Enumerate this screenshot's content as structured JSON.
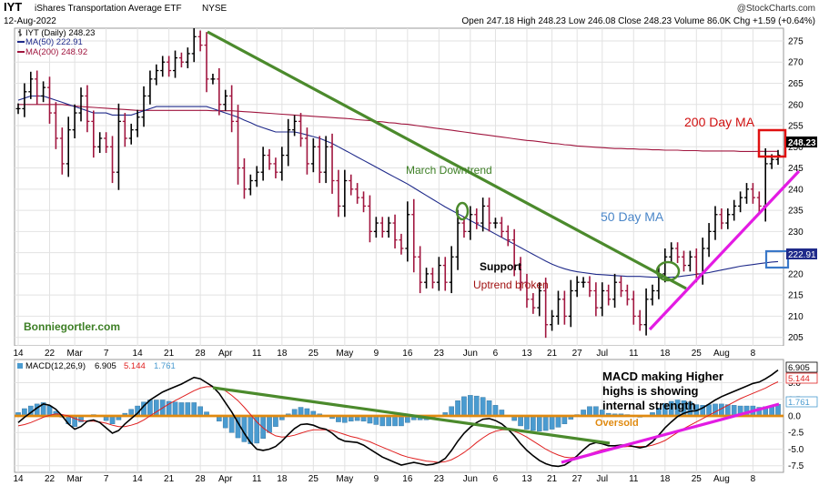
{
  "header": {
    "symbol": "IYT",
    "name": "iShares Transportation Average ETF",
    "exchange": "NYSE",
    "date": "12-Aug-2022",
    "quote": "Open 247.18  High 248.23  Low 246.08  Close 248.23  Volume 86.0K  Chg +1.59 (+0.64%)",
    "watermark": "@StockCharts.com"
  },
  "legend": {
    "price": "IYT (Daily) 248.23",
    "ma50": "MA(50) 222.91",
    "ma200": "MA(200) 248.92"
  },
  "macd_legend": {
    "label": "MACD(12,26,9)",
    "macd": "6.905",
    "signal": "5.144",
    "hist": "1.761"
  },
  "annotations": {
    "ma200": "200 Day MA",
    "ma50": "50 Day MA",
    "downtrend": "March Downtrend",
    "support": "Support",
    "uptrend_broken": "Uptrend broken",
    "site": "Bonniegortler.com",
    "macd_note_1": "MACD making Higher",
    "macd_note_2": "highs is showing",
    "macd_note_3": "internal strength",
    "oversold": "Oversold"
  },
  "price_tags": {
    "close": "248.23",
    "ma50": "222.91"
  },
  "macd_tags": {
    "macd": "6.905",
    "signal": "5.144",
    "hist": "1.761"
  },
  "colors": {
    "up": "#000000",
    "down": "#a0153e",
    "ma50": "#1f2a8a",
    "ma200": "#a0153e",
    "trend": "#4b8a2c",
    "uptrend": "#e31be3",
    "macd": "#000000",
    "signal": "#e02020",
    "hist": "#4a9bd0",
    "zero": "#e08a10",
    "box200": "#e01010",
    "box50": "#3a78c8",
    "ann200": "#d01010",
    "ann50": "#4a86c8",
    "grid": "#e2e2e2"
  },
  "chart_data": [
    {
      "type": "ohlc",
      "title": "IYT (Daily) 248.23",
      "ylim": [
        203,
        278
      ],
      "y_ticks": [
        205,
        210,
        215,
        220,
        225,
        230,
        235,
        240,
        245,
        250,
        255,
        260,
        265,
        270,
        275
      ],
      "x_tick_labels": [
        {
          "i": 0,
          "t": "14"
        },
        {
          "i": 5,
          "t": "22"
        },
        {
          "i": 9,
          "t": "Mar"
        },
        {
          "i": 14,
          "t": "7"
        },
        {
          "i": 19,
          "t": "14"
        },
        {
          "i": 24,
          "t": "21"
        },
        {
          "i": 29,
          "t": "28"
        },
        {
          "i": 33,
          "t": "Apr"
        },
        {
          "i": 38,
          "t": "11"
        },
        {
          "i": 42,
          "t": "18"
        },
        {
          "i": 47,
          "t": "25"
        },
        {
          "i": 52,
          "t": "May"
        },
        {
          "i": 57,
          "t": "9"
        },
        {
          "i": 62,
          "t": "16"
        },
        {
          "i": 67,
          "t": "23"
        },
        {
          "i": 72,
          "t": "Jun"
        },
        {
          "i": 76,
          "t": "6"
        },
        {
          "i": 81,
          "t": "13"
        },
        {
          "i": 85,
          "t": "21"
        },
        {
          "i": 89,
          "t": "27"
        },
        {
          "i": 93,
          "t": "Jul"
        },
        {
          "i": 98,
          "t": "11"
        },
        {
          "i": 103,
          "t": "18"
        },
        {
          "i": 108,
          "t": "25"
        },
        {
          "i": 112,
          "t": "Aug"
        },
        {
          "i": 117,
          "t": "8"
        }
      ],
      "close": [
        259,
        263,
        266,
        262,
        264,
        258,
        252,
        246,
        254,
        258,
        262,
        256,
        250,
        252,
        250,
        244,
        256,
        252,
        254,
        257,
        262,
        266,
        268,
        270,
        268,
        271,
        270,
        272,
        276,
        274,
        266,
        266,
        260,
        262,
        256,
        245,
        240,
        242,
        244,
        248,
        246,
        244,
        248,
        254,
        256,
        252,
        246,
        250,
        244,
        250,
        242,
        236,
        242,
        240,
        238,
        236,
        230,
        232,
        230,
        232,
        228,
        226,
        234,
        224,
        218,
        220,
        218,
        222,
        218,
        224,
        232,
        230,
        234,
        232,
        236,
        232,
        232,
        230,
        228,
        222,
        218,
        214,
        212,
        216,
        208,
        210,
        214,
        210,
        216,
        218,
        218,
        216,
        212,
        216,
        214,
        218,
        216,
        214,
        210,
        208,
        214,
        216,
        220,
        224,
        226,
        224,
        222,
        224,
        220,
        226,
        230,
        234,
        232,
        234,
        236,
        238,
        240,
        238,
        236,
        246,
        247,
        248
      ],
      "ma50": [
        261,
        261.5,
        262,
        262,
        262,
        261.5,
        261,
        260.5,
        260,
        259.5,
        259,
        258.5,
        258,
        258,
        258,
        257.5,
        257.5,
        257.5,
        257.5,
        258,
        258.5,
        259,
        259.5,
        259.5,
        259.5,
        259.5,
        259.5,
        259.5,
        259.5,
        259.5,
        259.5,
        259,
        258.5,
        258,
        257.5,
        257,
        256.3,
        255.7,
        255,
        254.5,
        254,
        253.5,
        253.5,
        253.5,
        253.5,
        253.2,
        252.8,
        252.4,
        252,
        251.4,
        250.8,
        250,
        249.2,
        248.4,
        247.6,
        246.8,
        246,
        245.2,
        244.4,
        243.6,
        242.8,
        242,
        241.2,
        240.3,
        239.4,
        238.5,
        237.6,
        236.7,
        235.8,
        235,
        234.2,
        233.4,
        232.6,
        231.8,
        231,
        230.2,
        229.4,
        228.6,
        227.8,
        227,
        226.2,
        225.4,
        224.6,
        223.8,
        223,
        222.3,
        221.7,
        221.2,
        220.8,
        220.5,
        220.3,
        220.1,
        219.9,
        219.8,
        219.7,
        219.6,
        219.5,
        219.4,
        219.4,
        219.4,
        219.3,
        219.2,
        219.2,
        219.2,
        219.2,
        219.3,
        219.5,
        219.7,
        219.9,
        220.1,
        220.3,
        220.6,
        220.9,
        221.2,
        221.5,
        221.8,
        222,
        222.2,
        222.4,
        222.6,
        222.8,
        222.91
      ],
      "ma200": [
        260,
        260,
        260,
        260,
        260,
        260,
        260,
        260,
        259.8,
        259.6,
        259.5,
        259.4,
        259.3,
        259.2,
        259.1,
        259,
        258.9,
        258.8,
        258.7,
        258.6,
        258.6,
        258.6,
        258.6,
        258.6,
        258.6,
        258.6,
        258.6,
        258.6,
        258.6,
        258.6,
        258.6,
        258.5,
        258.5,
        258.5,
        258.5,
        258.4,
        258.3,
        258.2,
        258.1,
        258,
        257.9,
        257.8,
        257.7,
        257.6,
        257.5,
        257.4,
        257.3,
        257.2,
        257.1,
        257,
        256.9,
        256.8,
        256.7,
        256.6,
        256.4,
        256.3,
        256.2,
        256,
        255.9,
        255.7,
        255.6,
        255.4,
        255.3,
        255.1,
        254.9,
        254.7,
        254.5,
        254.3,
        254.1,
        253.9,
        253.7,
        253.5,
        253.3,
        253.1,
        252.9,
        252.7,
        252.5,
        252.3,
        252.1,
        251.9,
        251.7,
        251.5,
        251.4,
        251.2,
        251,
        250.8,
        250.7,
        250.5,
        250.4,
        250.2,
        250.1,
        250,
        249.9,
        249.8,
        249.7,
        249.6,
        249.6,
        249.5,
        249.5,
        249.4,
        249.4,
        249.3,
        249.3,
        249.2,
        249.2,
        249.2,
        249.1,
        249.1,
        249.1,
        249,
        249,
        249,
        249,
        249,
        249,
        248.9,
        248.9,
        248.9,
        248.92,
        248.92,
        248.92,
        248.92
      ]
    },
    {
      "type": "macd",
      "title": "MACD(12,26,9) 6.905, 5.144, 1.761",
      "ylim": [
        -8.5,
        8.5
      ],
      "y_ticks": [
        -7.5,
        -5.0,
        -2.5,
        0.0,
        2.5,
        5.0
      ],
      "macd": [
        -1,
        -0.2,
        0.5,
        1.2,
        1.8,
        1.6,
        1,
        0,
        -1.2,
        -2,
        -1.6,
        -0.8,
        -0.6,
        -1,
        -1.8,
        -2.6,
        -2.2,
        -1.2,
        -0.4,
        0.4,
        1.5,
        2.4,
        3,
        3.6,
        4,
        4.4,
        4.8,
        5.3,
        5.8,
        5.6,
        5,
        4.4,
        3.4,
        2,
        0.6,
        -1,
        -2.6,
        -4,
        -5,
        -5.2,
        -5,
        -4.6,
        -3.8,
        -2.8,
        -1.9,
        -1.3,
        -1.2,
        -1.4,
        -1.8,
        -2,
        -2.6,
        -3.4,
        -3.8,
        -3.9,
        -4,
        -4.4,
        -5,
        -5.6,
        -6.2,
        -6.6,
        -7,
        -7.4,
        -7.2,
        -7,
        -7.2,
        -7.4,
        -7.3,
        -7,
        -6.4,
        -5.2,
        -3.8,
        -2.6,
        -1.7,
        -1,
        -0.5,
        -0.4,
        -0.7,
        -1.2,
        -2,
        -3,
        -4.2,
        -5.2,
        -6,
        -6.7,
        -7.2,
        -7.5,
        -7.6,
        -7.4,
        -6.8,
        -6,
        -5.1,
        -4.3,
        -4,
        -4.2,
        -4.5,
        -4.5,
        -4.4,
        -4.4,
        -4.6,
        -4.8,
        -4.6,
        -3.9,
        -2.9,
        -1.8,
        -0.9,
        -0.1,
        0.4,
        0.7,
        0.8,
        1.2,
        1.8,
        2.4,
        2.9,
        3.3,
        3.7,
        4.1,
        4.5,
        4.9,
        5.1,
        5.6,
        6.2,
        6.905
      ],
      "signal": [
        -1.5,
        -1.3,
        -1,
        -0.6,
        -0.2,
        0.1,
        0.3,
        0.2,
        0,
        -0.4,
        -0.7,
        -0.8,
        -0.8,
        -0.9,
        -1.1,
        -1.4,
        -1.6,
        -1.6,
        -1.4,
        -1.1,
        -0.6,
        0,
        0.6,
        1.2,
        1.8,
        2.3,
        2.8,
        3.3,
        3.8,
        4.2,
        4.4,
        4.4,
        4.2,
        3.8,
        3.1,
        2.3,
        1.3,
        0.2,
        -0.9,
        -1.8,
        -2.5,
        -3,
        -3.2,
        -3.1,
        -2.9,
        -2.6,
        -2.3,
        -2.1,
        -2.1,
        -2.1,
        -2.2,
        -2.5,
        -2.8,
        -3.1,
        -3.3,
        -3.6,
        -3.9,
        -4.3,
        -4.7,
        -5.1,
        -5.5,
        -5.9,
        -6.2,
        -6.4,
        -6.6,
        -6.8,
        -6.9,
        -7,
        -6.9,
        -6.6,
        -6.1,
        -5.5,
        -4.8,
        -4,
        -3.3,
        -2.7,
        -2.3,
        -2.1,
        -2.1,
        -2.3,
        -2.7,
        -3.2,
        -3.8,
        -4.4,
        -5,
        -5.5,
        -5.9,
        -6.2,
        -6.3,
        -6.2,
        -6,
        -5.7,
        -5.4,
        -5.1,
        -4.9,
        -4.8,
        -4.7,
        -4.6,
        -4.6,
        -4.6,
        -4.6,
        -4.4,
        -4.1,
        -3.7,
        -3.1,
        -2.5,
        -1.9,
        -1.4,
        -0.9,
        -0.4,
        0.1,
        0.6,
        1.1,
        1.6,
        2.1,
        2.6,
        3,
        3.4,
        3.8,
        4.2,
        4.7,
        5.144
      ],
      "hist": [
        0.5,
        1.1,
        1.5,
        1.8,
        2,
        1.5,
        0.7,
        -0.2,
        -1.2,
        -1.6,
        -0.9,
        0,
        0.2,
        -0.1,
        -0.7,
        -1.2,
        -0.6,
        0.4,
        1,
        1.5,
        2.1,
        2.4,
        2.4,
        2.4,
        2.2,
        2.1,
        2,
        2,
        2,
        1.4,
        0.6,
        0,
        -0.8,
        -1.8,
        -2.5,
        -3.3,
        -3.9,
        -4.2,
        -4.1,
        -3.4,
        -2.5,
        -1.6,
        -0.6,
        0.3,
        1,
        1.3,
        1.1,
        0.7,
        0.3,
        0.1,
        -0.4,
        -0.9,
        -1,
        -0.8,
        -0.7,
        -0.8,
        -1.1,
        -1.3,
        -1.5,
        -1.5,
        -1.5,
        -1.5,
        -1,
        -0.6,
        -0.6,
        -0.6,
        -0.4,
        0,
        0.5,
        1.4,
        2.3,
        2.9,
        3.1,
        3,
        2.8,
        2.3,
        1.6,
        0.9,
        0.1,
        -0.7,
        -1.5,
        -2,
        -2.2,
        -2.3,
        -2.2,
        -2,
        -1.7,
        -1.2,
        -0.5,
        0.2,
        0.9,
        1.4,
        1.4,
        0.9,
        0.4,
        0.3,
        0.3,
        0.2,
        0,
        -0.2,
        0,
        0.5,
        1.2,
        1.9,
        2.2,
        2.4,
        2.3,
        2.1,
        1.7,
        1.6,
        1.7,
        1.8,
        1.8,
        1.7,
        1.6,
        1.5,
        1.5,
        1.5,
        1.3,
        1.4,
        1.5,
        1.761
      ]
    }
  ]
}
